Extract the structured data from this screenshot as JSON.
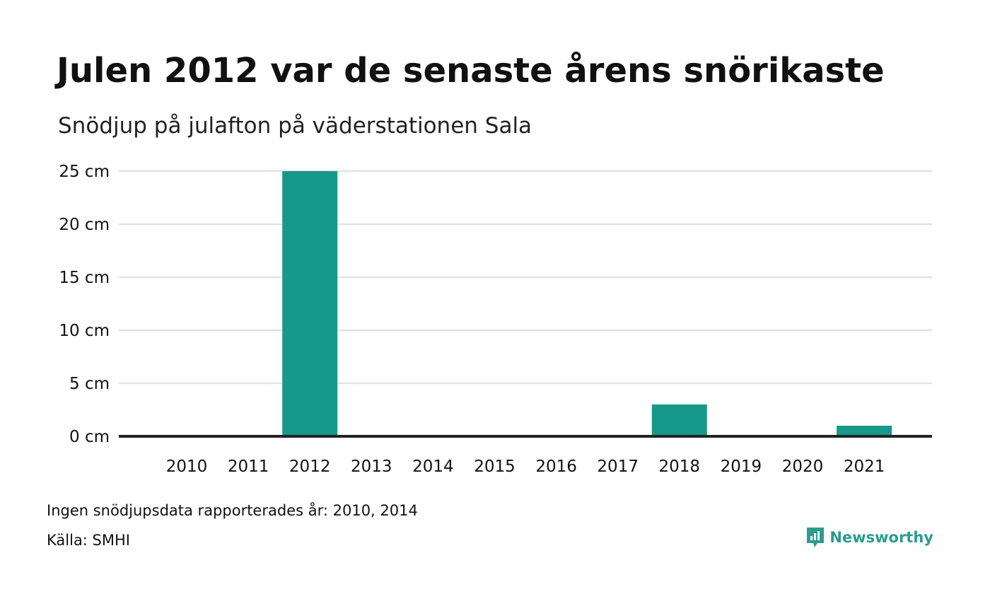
{
  "title": "Julen 2012 var de senaste årens snörikaste",
  "subtitle": "Snödjup på julafton på väderstationen Sala",
  "note": "Ingen snödjupsdata rapporterades år: 2010, 2014",
  "source": "Källa: SMHI",
  "brand": {
    "name": "Newsworthy",
    "icon": "newsworthy-logo-icon",
    "color": "#2a9d8f"
  },
  "colors": {
    "bar": "#16998a",
    "grid": "#e3e3e3",
    "baseline": "#222222"
  },
  "chart_data": {
    "type": "bar",
    "categories": [
      "2010",
      "2011",
      "2012",
      "2013",
      "2014",
      "2015",
      "2016",
      "2017",
      "2018",
      "2019",
      "2020",
      "2021"
    ],
    "values": [
      null,
      0,
      25,
      0,
      null,
      0,
      0,
      0,
      3,
      0,
      0,
      1
    ],
    "ylim": [
      0,
      25
    ],
    "yticks": [
      0,
      5,
      10,
      15,
      20,
      25
    ],
    "ytick_labels": [
      "0 cm",
      "5 cm",
      "10 cm",
      "15 cm",
      "20 cm",
      "25 cm"
    ],
    "grid": true,
    "legend": "none"
  }
}
